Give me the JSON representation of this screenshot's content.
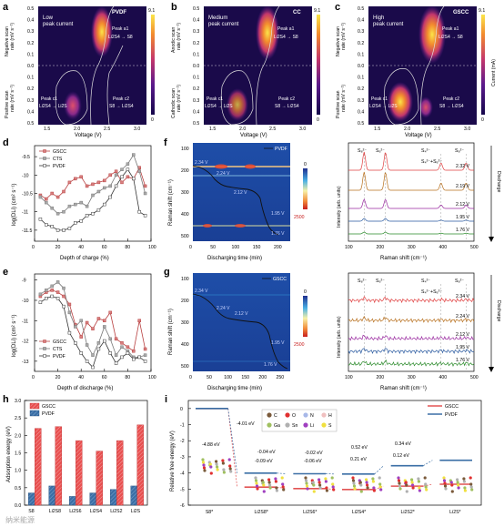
{
  "panels": {
    "a": {
      "letter": "a",
      "title": "PVDF",
      "desc": [
        "Low",
        "peak current"
      ],
      "peak_a1": "Peak a1",
      "peak_a1_rxn": "Li2S4 → S8",
      "peak_c1": "Peak c1",
      "peak_c1_rxn": "Li2S4 → Li2S",
      "peak_c2": "Peak c2",
      "peak_c2_rxn": "S8 → Li2S4"
    },
    "b": {
      "letter": "b",
      "title": "CC",
      "desc": [
        "Medium",
        "peak current"
      ],
      "peak_a1": "Peak a1",
      "peak_a1_rxn": "Li2S4 → S8",
      "peak_c1": "Peak c1",
      "peak_c1_rxn": "Li2S4 → Li2S",
      "peak_c2": "Peak c2",
      "peak_c2_rxn": "S8 → Li2S4"
    },
    "c": {
      "letter": "c",
      "title": "GSCC",
      "desc": [
        "High",
        "peak current"
      ],
      "peak_a1": "Peak a1",
      "peak_a1_rxn": "Li2S4 → S8",
      "peak_c1": "Peak c1",
      "peak_c1_rxn": "Li2S4 → Li2S",
      "peak_c2": "Peak c2",
      "peak_c2_rxn": "S8 → Li2S4"
    },
    "common": {
      "x_label": "Voltage (V)",
      "x_ticks": [
        "1.5",
        "2.0",
        "2.5",
        "3.0"
      ],
      "y_ticks": [
        "0.5",
        "0.4",
        "0.3",
        "0.2",
        "0.1",
        "0.0",
        "0.1",
        "0.2",
        "0.3",
        "0.4",
        "0.5"
      ],
      "ylab_neg_a": "Negative scan",
      "ylab_neg_b": "Anodic scan",
      "ylab_pos_a": "Positive scan",
      "ylab_pos_b": "Cathodic scan",
      "ylab_unit": "rate (mV s⁻¹)",
      "cbar_max": "9.1",
      "cbar_min": "0",
      "cbar_label": "Current (mA)"
    },
    "d": {
      "letter": "d",
      "x_label": "Depth of charge (%)",
      "y_label": "log(DLi) (cm² s⁻¹)",
      "legend": [
        "GSCC",
        "CTS",
        "PVDF"
      ],
      "y_ticks": [
        "-9.5",
        "-10",
        "-10.5",
        "-11",
        "-11.5"
      ],
      "x_ticks": [
        "0",
        "20",
        "40",
        "60",
        "80",
        "100"
      ]
    },
    "e": {
      "letter": "e",
      "x_label": "Depth of discharge (%)",
      "y_label": "log(DLi) (cm² s⁻¹)",
      "legend": [
        "GSCC",
        "CTS",
        "PVDF"
      ],
      "y_ticks": [
        "-9",
        "-10",
        "-11",
        "-12",
        "-13"
      ],
      "x_ticks": [
        "0",
        "20",
        "40",
        "60",
        "80",
        "100"
      ]
    },
    "f": {
      "letter": "f",
      "legend": "PVDF",
      "x_label": "Discharging time (min)",
      "y_label": "Raman shift (cm⁻¹)",
      "y_ticks": [
        "100",
        "200",
        "300",
        "400",
        "500"
      ],
      "x_ticks": [
        "0",
        "50",
        "100",
        "150",
        "200"
      ],
      "v_labels": [
        "2.34 V",
        "2.24 V",
        "2.12 V",
        "1.95 V",
        "1.76 V"
      ],
      "cbar_top": "0",
      "cbar_bottom": "2500",
      "spec_labels": [
        "2.32 V",
        "2.19 V",
        "2.12 V",
        "1.95 V",
        "1.76 V"
      ],
      "spec_x_label": "Raman shift (cm⁻¹)",
      "spec_y_label": "Intensity (arb. units)",
      "spec_x_ticks": [
        "100",
        "200",
        "300",
        "400",
        "500"
      ],
      "side_label": "Discharge",
      "peak_labels": [
        "S₈²⁻",
        "S₆²⁻",
        "S₄²⁻",
        "S₄²⁻+S₆²⁻",
        "S₈²⁻"
      ]
    },
    "g": {
      "letter": "g",
      "legend": "GSCC",
      "x_label": "Discharging time (min)",
      "y_label": "Raman shift (cm⁻¹)",
      "y_ticks": [
        "100",
        "200",
        "300",
        "400",
        "500"
      ],
      "x_ticks": [
        "0",
        "50",
        "100",
        "150",
        "200",
        "250"
      ],
      "v_labels": [
        "2.34 V",
        "2.24 V",
        "2.12 V",
        "1.95 V",
        "1.76 V"
      ],
      "cbar_top": "0",
      "cbar_bottom": "2500",
      "spec_labels": [
        "2.34 V",
        "2.24 V",
        "2.12 V",
        "1.95 V",
        "1.76 V"
      ],
      "spec_x_label": "Raman shift (cm⁻¹)",
      "spec_y_label": "Intensity (arb. units)",
      "spec_x_ticks": [
        "100",
        "200",
        "300",
        "400",
        "500"
      ],
      "side_label": "Discharge",
      "peak_labels": [
        "S₈²⁻",
        "S₆²⁻",
        "S₄²⁻",
        "S₄²⁻+S₆²⁻",
        "S₈²⁻"
      ]
    },
    "h": {
      "letter": "h",
      "y_label": "Adsorption energy (eV)",
      "y_ticks": [
        "0.0",
        "0.5",
        "1.0",
        "1.5",
        "2.0",
        "2.5",
        "3.0"
      ],
      "legend": [
        "GSCC",
        "PVDF"
      ]
    },
    "i": {
      "letter": "i",
      "y_label": "Relative free energy (eV)",
      "y_ticks": [
        "0",
        "-1",
        "-2",
        "-3",
        "-4",
        "-5",
        "-6"
      ],
      "legend": [
        "GSCC",
        "PVDF"
      ],
      "elements": [
        "C",
        "O",
        "N",
        "H",
        "Ga",
        "Sn",
        "Li",
        "S"
      ],
      "gscc_labels": [
        "-4.88 eV",
        "-0.09 eV",
        "-0.06 eV",
        "0.21 eV",
        "0.12 eV"
      ],
      "pvdf_labels": [
        "-4.01 eV",
        "-0.04 eV",
        "-0.02 eV",
        "0.52 eV",
        "0.34 eV"
      ]
    },
    "watermark": "纳米能源"
  },
  "chart_data": [
    {
      "type": "line",
      "panel": "d",
      "xlabel": "Depth of charge (%)",
      "ylabel": "log(DLi) (cm² s⁻¹)",
      "xlim": [
        0,
        100
      ],
      "ylim": [
        -11.8,
        -9.2
      ],
      "series": [
        {
          "name": "GSCC",
          "x": [
            5,
            10,
            15,
            20,
            25,
            30,
            35,
            40,
            45,
            50,
            55,
            60,
            65,
            70,
            75,
            80,
            85,
            90,
            95
          ],
          "y": [
            -10.55,
            -10.65,
            -10.5,
            -10.6,
            -10.45,
            -10.2,
            -10.1,
            -10.05,
            -10.3,
            -10.25,
            -10.2,
            -10.15,
            -10.0,
            -9.9,
            -10.2,
            -10.05,
            -10.1,
            -9.8,
            -10.3
          ]
        },
        {
          "name": "CTS",
          "x": [
            5,
            10,
            15,
            20,
            25,
            30,
            35,
            40,
            45,
            50,
            55,
            60,
            65,
            70,
            75,
            80,
            85,
            90,
            95
          ],
          "y": [
            -10.6,
            -10.75,
            -10.9,
            -11.05,
            -11.0,
            -10.85,
            -10.8,
            -10.75,
            -10.85,
            -10.55,
            -10.45,
            -10.35,
            -10.3,
            -10.0,
            -9.85,
            -9.7,
            -9.45,
            -9.9,
            -10.5
          ]
        },
        {
          "name": "PVDF",
          "x": [
            5,
            10,
            15,
            20,
            25,
            30,
            35,
            40,
            45,
            50,
            55,
            60,
            65,
            70,
            75,
            80,
            85,
            90,
            95
          ],
          "y": [
            -11.2,
            -11.35,
            -11.4,
            -11.5,
            -11.5,
            -11.45,
            -11.3,
            -11.25,
            -11.1,
            -11.05,
            -10.95,
            -10.8,
            -10.6,
            -10.3,
            -10.05,
            -9.85,
            -10.1,
            -11.0,
            -11.1
          ]
        }
      ]
    },
    {
      "type": "line",
      "panel": "e",
      "xlabel": "Depth of discharge (%)",
      "ylabel": "log(DLi) (cm² s⁻¹)",
      "xlim": [
        0,
        100
      ],
      "ylim": [
        -13.5,
        -8.7
      ],
      "series": [
        {
          "name": "GSCC",
          "x": [
            5,
            10,
            15,
            20,
            25,
            30,
            35,
            40,
            45,
            50,
            55,
            60,
            65,
            70,
            75,
            80,
            85,
            90,
            95
          ],
          "y": [
            -9.8,
            -9.6,
            -9.5,
            -9.6,
            -9.8,
            -10.2,
            -11.2,
            -11.8,
            -11.1,
            -11.4,
            -10.9,
            -11.0,
            -10.6,
            -11.9,
            -12.1,
            -12.3,
            -12.5,
            -11.0,
            -12.4
          ]
        },
        {
          "name": "CTS",
          "x": [
            5,
            10,
            15,
            20,
            25,
            30,
            35,
            40,
            45,
            50,
            55,
            60,
            65,
            70,
            75,
            80,
            85,
            90,
            95
          ],
          "y": [
            -9.7,
            -9.5,
            -9.3,
            -9.1,
            -9.4,
            -10.6,
            -11.3,
            -11.0,
            -12.2,
            -12.7,
            -12.1,
            -11.3,
            -11.9,
            -12.7,
            -12.3,
            -12.5,
            -12.8,
            -12.8,
            -12.7
          ]
        },
        {
          "name": "PVDF",
          "x": [
            5,
            10,
            15,
            20,
            25,
            30,
            35,
            40,
            45,
            50,
            55,
            60,
            65,
            70,
            75,
            80,
            85,
            90,
            95
          ],
          "y": [
            -10.1,
            -9.9,
            -9.8,
            -9.9,
            -10.3,
            -11.6,
            -12.1,
            -12.6,
            -13.0,
            -13.3,
            -12.4,
            -12.0,
            -12.6,
            -13.1,
            -12.8,
            -12.6,
            -12.9,
            -12.8,
            -13.0
          ]
        }
      ]
    },
    {
      "type": "bar",
      "panel": "h",
      "ylabel": "Adsorption energy (eV)",
      "ylim": [
        0,
        3.0
      ],
      "categories": [
        "S8",
        "Li2S8",
        "Li2S6",
        "Li2S4",
        "Li2S2",
        "Li2S"
      ],
      "series": [
        {
          "name": "GSCC",
          "values": [
            2.2,
            2.25,
            1.85,
            1.55,
            1.85,
            2.3
          ]
        },
        {
          "name": "PVDF",
          "values": [
            0.35,
            0.55,
            0.25,
            0.35,
            0.45,
            0.55
          ]
        }
      ]
    },
    {
      "type": "line",
      "panel": "i",
      "ylabel": "Relative free energy (eV)",
      "ylim": [
        -6,
        0.5
      ],
      "categories": [
        "S8*",
        "Li2S8*",
        "Li2S6*",
        "Li2S4*",
        "Li2S2*",
        "Li2S*"
      ],
      "series": [
        {
          "name": "GSCC",
          "values": [
            0,
            -4.88,
            -4.97,
            -5.03,
            -4.82,
            -4.7
          ]
        },
        {
          "name": "PVDF",
          "values": [
            0,
            -4.01,
            -4.05,
            -4.07,
            -3.55,
            -3.21
          ]
        }
      ]
    }
  ]
}
